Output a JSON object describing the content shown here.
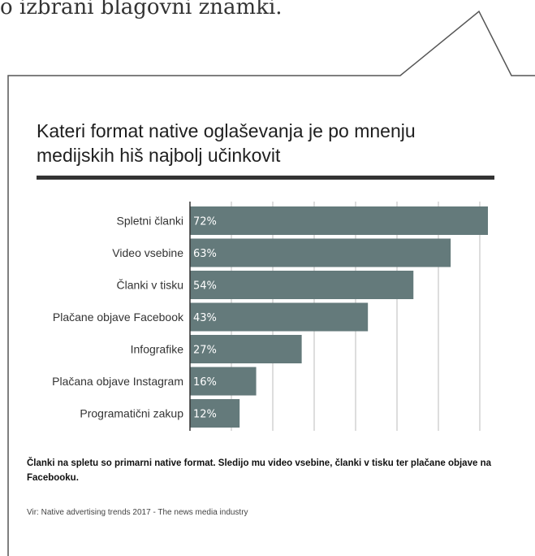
{
  "top_text": "o izbrani blagovni znamki.",
  "takeaway": "Članki na spletu so primarni native format. Sledijo mu video vsebine, članki v tisku ter plačane objave na Facebooku.",
  "source": "Vir: Native advertising trends 2017 - The news media industry",
  "colors": {
    "bar": "#647a7b",
    "grid": "#bbbbbb",
    "axis": "#333333",
    "frame": "#555555"
  },
  "chart_data": {
    "type": "bar",
    "orientation": "horizontal",
    "title": "Kateri format native oglaševanja je po mnenju medijskih hiš najbolj učinkovit",
    "categories": [
      "Spletni članki",
      "Video vsebine",
      "Članki v tisku",
      "Plačane objave Facebook",
      "Infografike",
      "Plačana objave Instagram",
      "Programatični zakup"
    ],
    "values": [
      72,
      63,
      54,
      43,
      27,
      16,
      12
    ],
    "value_labels": [
      "72%",
      "63%",
      "54%",
      "43%",
      "27%",
      "16%",
      "12%"
    ],
    "unit": "%",
    "xlim": [
      0,
      72
    ],
    "grid": true,
    "legend": "none"
  }
}
